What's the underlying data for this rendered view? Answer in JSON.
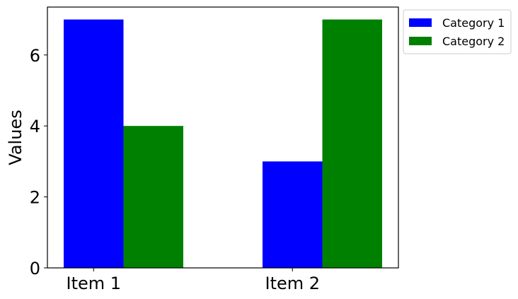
{
  "chart_data": {
    "type": "bar",
    "categories": [
      "Item 1",
      "Item 2"
    ],
    "series": [
      {
        "name": "Category 1",
        "values": [
          7,
          3
        ],
        "color": "#0000ff"
      },
      {
        "name": "Category 2",
        "values": [
          4,
          7
        ],
        "color": "#008000"
      }
    ],
    "title": "",
    "xlabel": "",
    "ylabel": "Values",
    "ylim": [
      0,
      7.35
    ],
    "yticks": [
      0,
      2,
      4,
      6
    ],
    "grid": false,
    "legend_position": "outside-top-right"
  }
}
